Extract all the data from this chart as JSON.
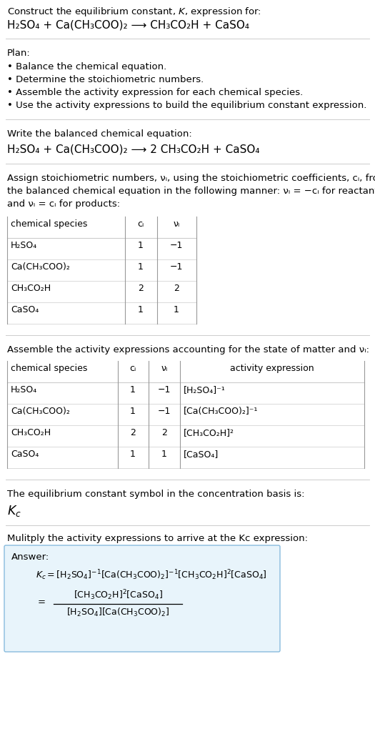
{
  "title_line1": "Construct the equilibrium constant, $K$, expression for:",
  "title_line2_plain": "H₂SO₄ + Ca(CH₃COO)₂ ⟶ CH₃CO₂H + CaSO₄",
  "plan_header": "Plan:",
  "plan_bullets": [
    "• Balance the chemical equation.",
    "• Determine the stoichiometric numbers.",
    "• Assemble the activity expression for each chemical species.",
    "• Use the activity expressions to build the equilibrium constant expression."
  ],
  "balanced_header": "Write the balanced chemical equation:",
  "balanced_eq_plain": "H₂SO₄ + Ca(CH₃COO)₂ ⟶ 2 CH₃CO₂H + CaSO₄",
  "stoich_intro_lines": [
    "Assign stoichiometric numbers, νᵢ, using the stoichiometric coefficients, cᵢ, from",
    "the balanced chemical equation in the following manner: νᵢ = −cᵢ for reactants",
    "and νᵢ = cᵢ for products:"
  ],
  "table1_headers": [
    "chemical species",
    "cᵢ",
    "νᵢ"
  ],
  "table1_rows": [
    [
      "H₂SO₄",
      "1",
      "−1"
    ],
    [
      "Ca(CH₃COO)₂",
      "1",
      "−1"
    ],
    [
      "CH₃CO₂H",
      "2",
      "2"
    ],
    [
      "CaSO₄",
      "1",
      "1"
    ]
  ],
  "activity_intro": "Assemble the activity expressions accounting for the state of matter and νᵢ:",
  "table2_headers": [
    "chemical species",
    "cᵢ",
    "νᵢ",
    "activity expression"
  ],
  "table2_rows": [
    [
      "H₂SO₄",
      "1",
      "−1",
      "[H₂SO₄]⁻¹"
    ],
    [
      "Ca(CH₃COO)₂",
      "1",
      "−1",
      "[Ca(CH₃COO)₂]⁻¹"
    ],
    [
      "CH₃CO₂H",
      "2",
      "2",
      "[CH₃CO₂H]²"
    ],
    [
      "CaSO₄",
      "1",
      "1",
      "[CaSO₄]"
    ]
  ],
  "kc_symbol_intro": "The equilibrium constant symbol in the concentration basis is:",
  "kc_symbol": "Kᴄ",
  "multiply_intro": "Mulitply the activity expressions to arrive at the Kᴄ expression:",
  "answer_label": "Answer:",
  "bg_color": "#ffffff",
  "answer_box_color": "#e8f4fb",
  "answer_box_border": "#88bbdd",
  "table_line_color": "#999999",
  "text_color": "#000000",
  "sep_line_color": "#cccccc",
  "font_size": 9.5
}
